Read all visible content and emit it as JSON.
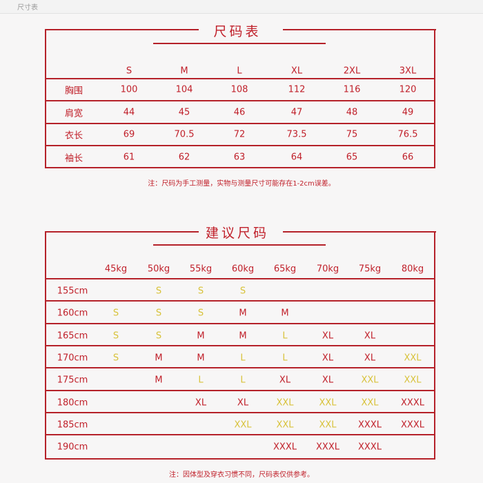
{
  "window": {
    "tab_label": "尺寸表"
  },
  "size_chart": {
    "title": "尺码表",
    "sizes": [
      "S",
      "M",
      "L",
      "XL",
      "2XL",
      "3XL"
    ],
    "rows": [
      {
        "label": "胸围",
        "values": [
          "100",
          "104",
          "108",
          "112",
          "116",
          "120"
        ]
      },
      {
        "label": "肩宽",
        "values": [
          "44",
          "45",
          "46",
          "47",
          "48",
          "49"
        ]
      },
      {
        "label": "衣长",
        "values": [
          "69",
          "70.5",
          "72",
          "73.5",
          "75",
          "76.5"
        ]
      },
      {
        "label": "袖长",
        "values": [
          "61",
          "62",
          "63",
          "64",
          "65",
          "66"
        ]
      }
    ],
    "note": "注：尺码为手工测量，实物与测量尺寸可能存在1-2cm误差。"
  },
  "recommend": {
    "title": "建议尺码",
    "weights": [
      "45kg",
      "50kg",
      "55kg",
      "60kg",
      "65kg",
      "70kg",
      "75kg",
      "80kg"
    ],
    "rows": [
      {
        "label": "155cm",
        "values": [
          "",
          "S",
          "S",
          "S",
          "",
          "",
          "",
          ""
        ]
      },
      {
        "label": "160cm",
        "values": [
          "S",
          "S",
          "S",
          "M",
          "M",
          "",
          "",
          ""
        ]
      },
      {
        "label": "165cm",
        "values": [
          "S",
          "S",
          "M",
          "M",
          "L",
          "XL",
          "XL",
          ""
        ]
      },
      {
        "label": "170cm",
        "values": [
          "S",
          "M",
          "M",
          "L",
          "L",
          "XL",
          "XL",
          "XXL"
        ]
      },
      {
        "label": "175cm",
        "values": [
          "",
          "M",
          "L",
          "L",
          "XL",
          "XL",
          "XXL",
          "XXL"
        ]
      },
      {
        "label": "180cm",
        "values": [
          "",
          "",
          "XL",
          "XL",
          "XXL",
          "XXL",
          "XXL",
          "XXXL"
        ]
      },
      {
        "label": "185cm",
        "values": [
          "",
          "",
          "",
          "XXL",
          "XXL",
          "XXL",
          "XXXL",
          "XXXL"
        ]
      },
      {
        "label": "190cm",
        "values": [
          "",
          "",
          "",
          "",
          "XXXL",
          "XXXL",
          "XXXL",
          ""
        ]
      }
    ],
    "size_colors": {
      "S": "#d8c23a",
      "L": "#d8c23a",
      "XXL": "#d8c23a",
      "M": "#c0202a",
      "XL": "#c0202a",
      "XXXL": "#c0202a"
    },
    "note": "注：因体型及穿衣习惯不同，尺码表仅供参考。"
  }
}
